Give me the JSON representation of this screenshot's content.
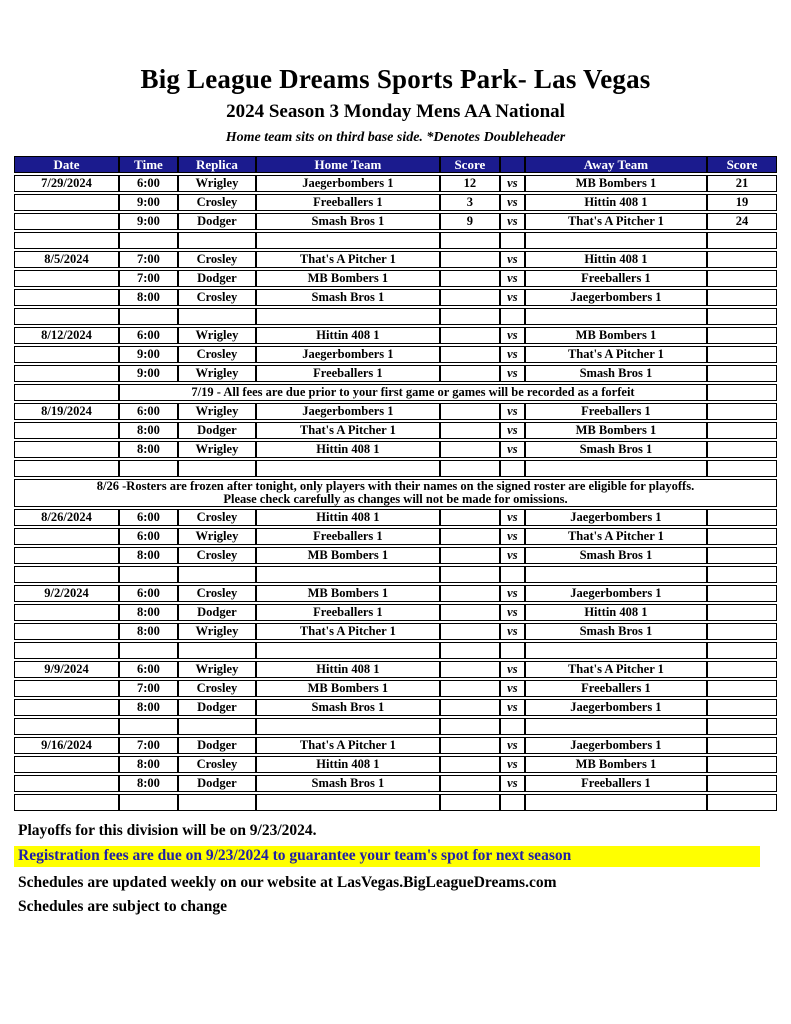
{
  "colors": {
    "navy": "#1B1B8E",
    "separator_blue": "#0E0E9B",
    "yellow": "#FFFF00",
    "red": "#FA0B0B",
    "registration_text_blue": "#1F1FA8"
  },
  "header": {
    "title": "Big League Dreams Sports Park- Las Vegas",
    "subtitle": "2024 Season 3 Monday Mens AA National",
    "note": "Home team sits on third base side.  *Denotes Doubleheader"
  },
  "table": {
    "columns": [
      "Date",
      "Time",
      "Replica",
      "Home Team",
      "Score",
      "",
      "Away Team",
      "Score"
    ],
    "vs_label": "vs",
    "sections": [
      {
        "date": "7/29/2024",
        "rows": [
          {
            "time": "6:00",
            "replica": "Wrigley",
            "home": "Jaegerbombers 1",
            "home_score": "12",
            "away": "MB Bombers 1",
            "away_score": "21",
            "away_highlight": true
          },
          {
            "time": "9:00",
            "replica": "Crosley",
            "home": "Freeballers 1",
            "home_score": "3",
            "away": "Hittin 408 1",
            "away_score": "19",
            "away_highlight": true
          },
          {
            "time": "9:00",
            "replica": "Dodger",
            "home": "Smash Bros 1",
            "home_score": "9",
            "away": "That's A Pitcher 1",
            "away_score": "24",
            "away_highlight": true
          }
        ],
        "separator_text": ""
      },
      {
        "date": "8/5/2024",
        "rows": [
          {
            "time": "7:00",
            "replica": "Crosley",
            "home": "That's A Pitcher 1",
            "home_score": "",
            "away": "Hittin 408 1",
            "away_score": "",
            "away_highlight": false
          },
          {
            "time": "7:00",
            "replica": "Dodger",
            "home": "MB Bombers 1",
            "home_score": "",
            "away": "Freeballers 1",
            "away_score": "",
            "away_highlight": false
          },
          {
            "time": "8:00",
            "replica": "Crosley",
            "home": "Smash Bros 1",
            "home_score": "",
            "away": "Jaegerbombers 1",
            "away_score": "",
            "away_highlight": false
          }
        ],
        "separator_text": ""
      },
      {
        "date": "8/12/2024",
        "rows": [
          {
            "time": "6:00",
            "replica": "Wrigley",
            "home": "Hittin 408 1",
            "home_score": "",
            "away": "MB Bombers 1",
            "away_score": "",
            "away_highlight": false
          },
          {
            "time": "9:00",
            "replica": "Crosley",
            "home": "Jaegerbombers 1",
            "home_score": "",
            "away": "That's A Pitcher 1",
            "away_score": "",
            "away_highlight": false
          },
          {
            "time": "9:00",
            "replica": "Wrigley",
            "home": "Freeballers 1",
            "home_score": "",
            "away": "Smash Bros 1",
            "away_score": "",
            "away_highlight": false
          }
        ],
        "separator_text": "7/19 - All fees are due prior to your first game or games will be recorded as a forfeit"
      },
      {
        "date": "8/19/2024",
        "rows": [
          {
            "time": "6:00",
            "replica": "Wrigley",
            "home": "Jaegerbombers 1",
            "home_score": "",
            "away": "Freeballers 1",
            "away_score": "",
            "away_highlight": false
          },
          {
            "time": "8:00",
            "replica": "Dodger",
            "home": "That's A Pitcher 1",
            "home_score": "",
            "away": "MB Bombers 1",
            "away_score": "",
            "away_highlight": false
          },
          {
            "time": "8:00",
            "replica": "Wrigley",
            "home": "Hittin 408 1",
            "home_score": "",
            "away": "Smash Bros 1",
            "away_score": "",
            "away_highlight": false
          }
        ],
        "separator_text": "",
        "banner": [
          "8/26 -Rosters are frozen after tonight, only players with their names on the signed roster are eligible for playoffs.",
          "Please check carefully as changes will not be made for omissions."
        ]
      },
      {
        "date": "8/26/2024",
        "rows": [
          {
            "time": "6:00",
            "replica": "Crosley",
            "home": "Hittin 408 1",
            "home_score": "",
            "away": "Jaegerbombers 1",
            "away_score": "",
            "away_highlight": false
          },
          {
            "time": "6:00",
            "replica": "Wrigley",
            "home": "Freeballers 1",
            "home_score": "",
            "away": "That's A Pitcher 1",
            "away_score": "",
            "away_highlight": false
          },
          {
            "time": "8:00",
            "replica": "Crosley",
            "home": "MB Bombers 1",
            "home_score": "",
            "away": "Smash Bros 1",
            "away_score": "",
            "away_highlight": false
          }
        ],
        "separator_text": ""
      },
      {
        "date": "9/2/2024",
        "rows": [
          {
            "time": "6:00",
            "replica": "Crosley",
            "home": "MB Bombers 1",
            "home_score": "",
            "away": "Jaegerbombers 1",
            "away_score": "",
            "away_highlight": false
          },
          {
            "time": "8:00",
            "replica": "Dodger",
            "home": "Freeballers 1",
            "home_score": "",
            "away": "Hittin 408 1",
            "away_score": "",
            "away_highlight": false
          },
          {
            "time": "8:00",
            "replica": "Wrigley",
            "home": "That's A Pitcher 1",
            "home_score": "",
            "away": "Smash Bros 1",
            "away_score": "",
            "away_highlight": false
          }
        ],
        "separator_text": ""
      },
      {
        "date": "9/9/2024",
        "rows": [
          {
            "time": "6:00",
            "replica": "Wrigley",
            "home": "Hittin 408 1",
            "home_score": "",
            "away": "That's A Pitcher 1",
            "away_score": "",
            "away_highlight": false
          },
          {
            "time": "7:00",
            "replica": "Crosley",
            "home": "MB Bombers 1",
            "home_score": "",
            "away": "Freeballers 1",
            "away_score": "",
            "away_highlight": false
          },
          {
            "time": "8:00",
            "replica": "Dodger",
            "home": "Smash Bros 1",
            "home_score": "",
            "away": "Jaegerbombers 1",
            "away_score": "",
            "away_highlight": false
          }
        ],
        "separator_text": ""
      },
      {
        "date": "9/16/2024",
        "rows": [
          {
            "time": "7:00",
            "replica": "Dodger",
            "home": "That's A Pitcher 1",
            "home_score": "",
            "away": "Jaegerbombers 1",
            "away_score": "",
            "away_highlight": false
          },
          {
            "time": "8:00",
            "replica": "Crosley",
            "home": "Hittin 408 1",
            "home_score": "",
            "away": "MB Bombers 1",
            "away_score": "",
            "away_highlight": false
          },
          {
            "time": "8:00",
            "replica": "Dodger",
            "home": "Smash Bros 1",
            "home_score": "",
            "away": "Freeballers 1",
            "away_score": "",
            "away_highlight": false
          }
        ],
        "separator_text": ""
      }
    ]
  },
  "footer": {
    "playoffs": "Playoffs for this division will be on 9/23/2024.",
    "registration": "Registration fees are due on 9/23/2024 to guarantee your team's spot for next season",
    "website": "Schedules are updated weekly on our website at LasVegas.BigLeagueDreams.com",
    "subject_to_change": "Schedules are subject to change"
  }
}
